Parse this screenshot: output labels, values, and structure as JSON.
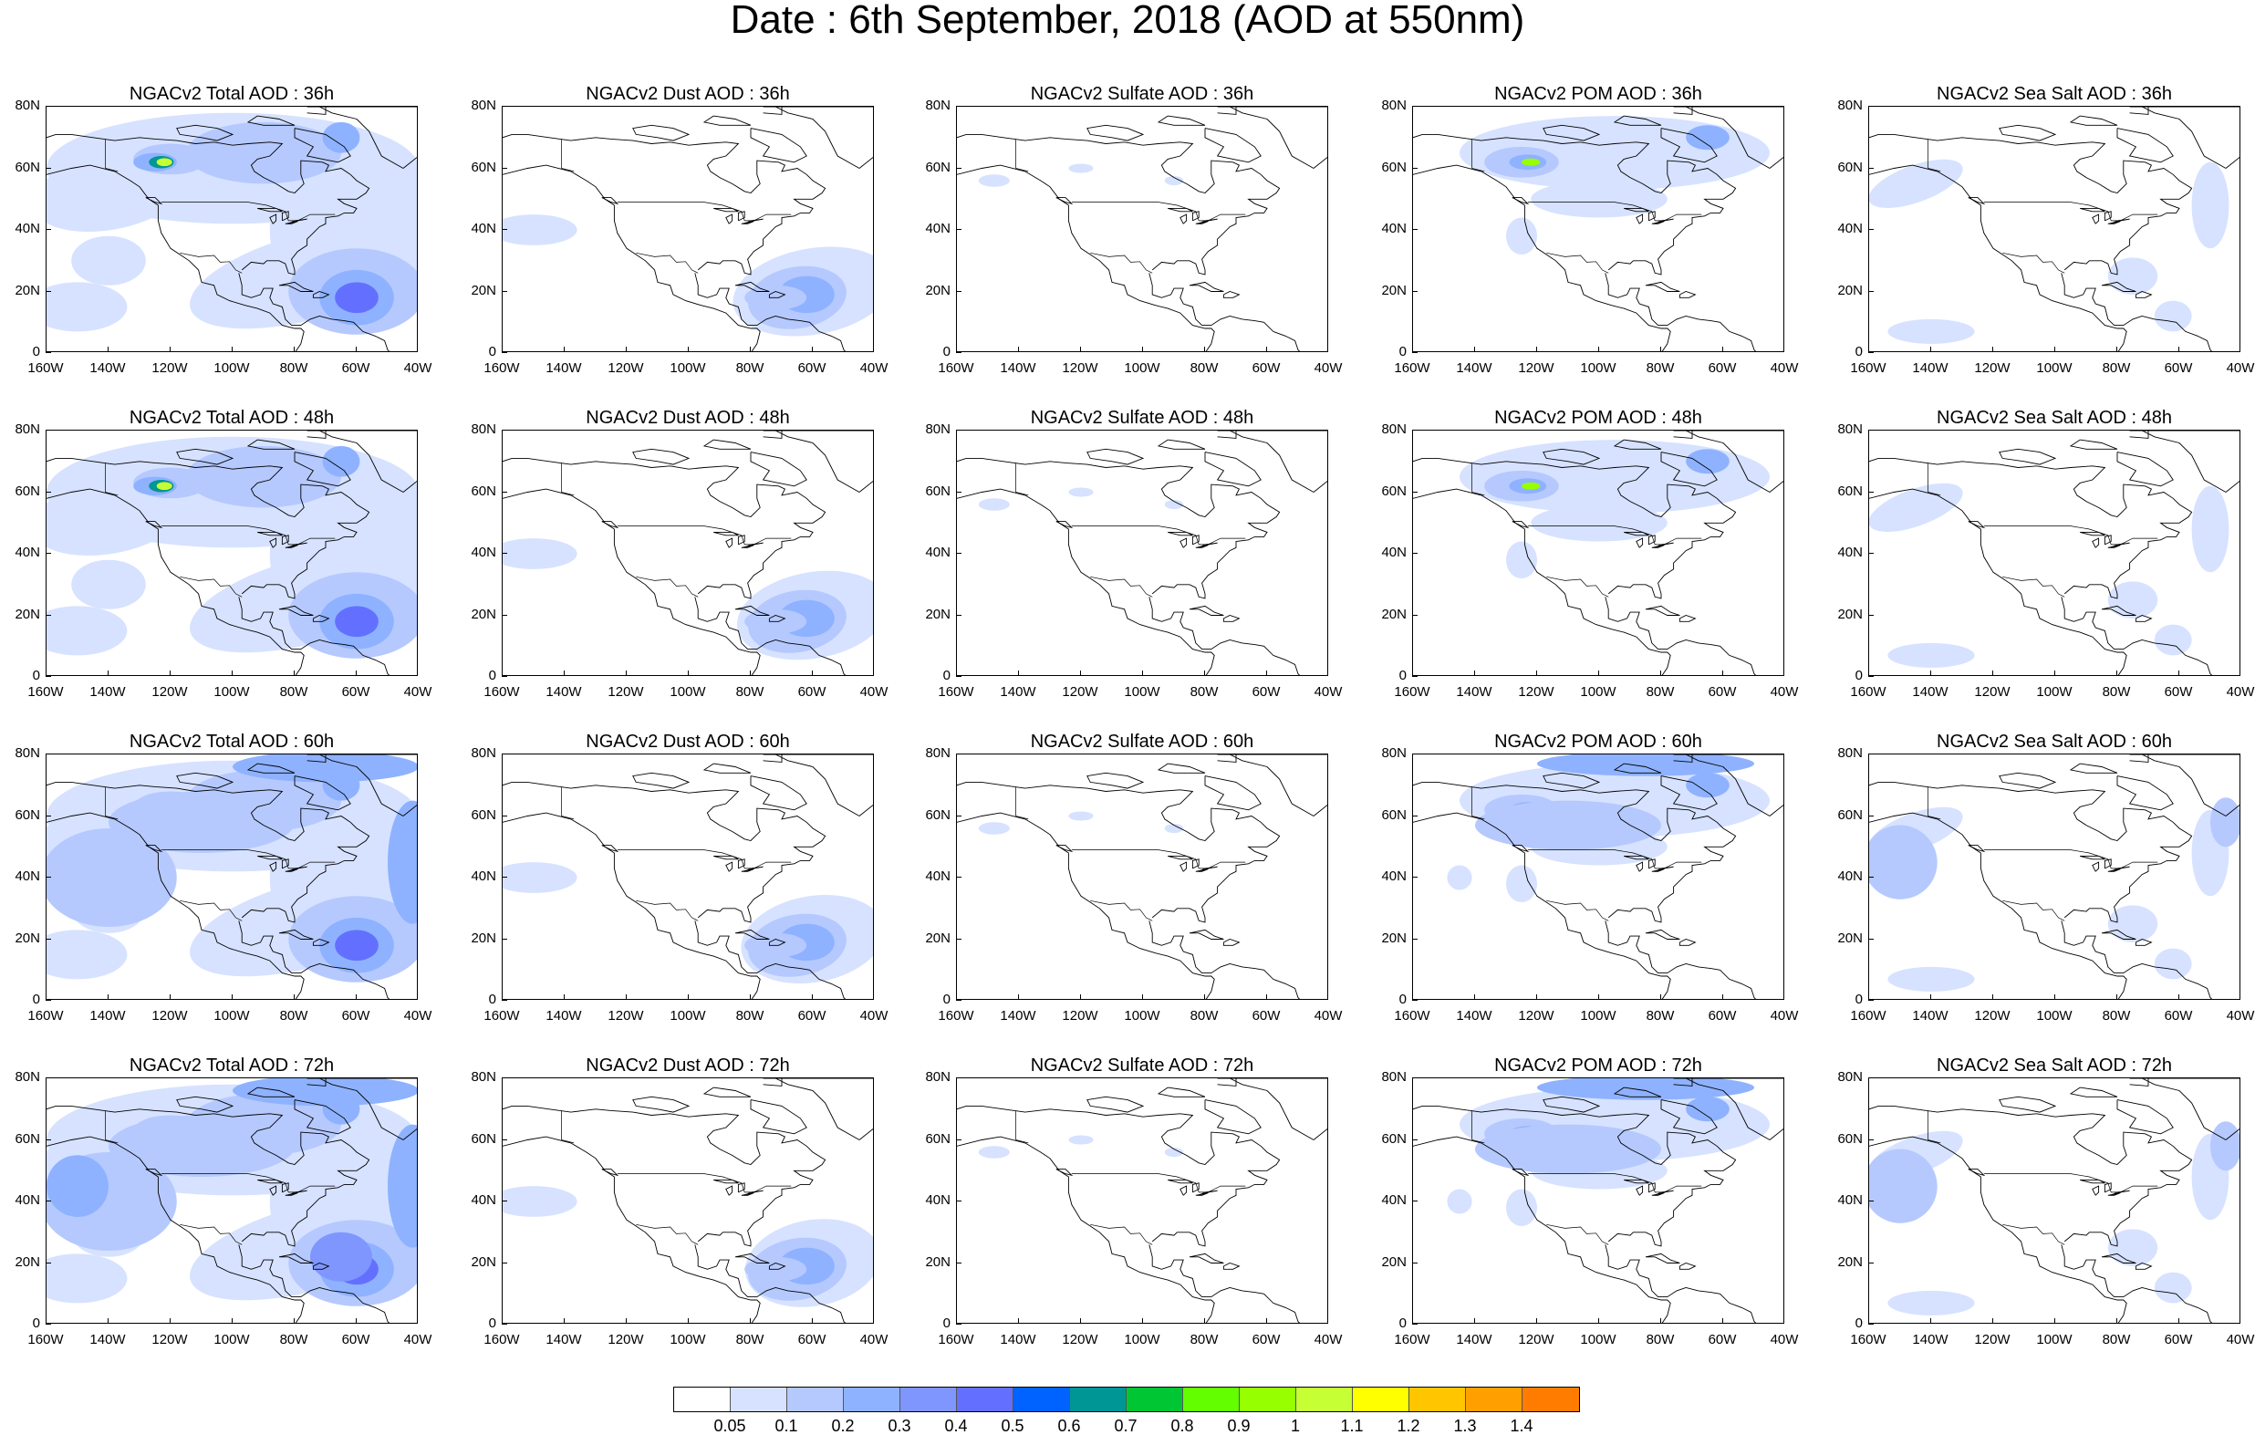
{
  "title": "Date : 6th September, 2018 (AOD at 550nm)",
  "x_ticks": [
    "160W",
    "140W",
    "120W",
    "100W",
    "80W",
    "60W",
    "40W"
  ],
  "y_ticks": [
    "80N",
    "60N",
    "40N",
    "20N",
    "0"
  ],
  "panels": [
    {
      "title": "NGACv2 Total AOD : 36h",
      "species": "total",
      "hour": 36
    },
    {
      "title": "NGACv2 Dust AOD : 36h",
      "species": "dust",
      "hour": 36
    },
    {
      "title": "NGACv2 Sulfate AOD : 36h",
      "species": "sulfate",
      "hour": 36
    },
    {
      "title": "NGACv2 POM AOD : 36h",
      "species": "pom",
      "hour": 36
    },
    {
      "title": "NGACv2 Sea Salt AOD : 36h",
      "species": "seasalt",
      "hour": 36
    },
    {
      "title": "NGACv2 Total AOD : 48h",
      "species": "total",
      "hour": 48
    },
    {
      "title": "NGACv2 Dust AOD : 48h",
      "species": "dust",
      "hour": 48
    },
    {
      "title": "NGACv2 Sulfate AOD : 48h",
      "species": "sulfate",
      "hour": 48
    },
    {
      "title": "NGACv2 POM AOD : 48h",
      "species": "pom",
      "hour": 48
    },
    {
      "title": "NGACv2 Sea Salt AOD : 48h",
      "species": "seasalt",
      "hour": 48
    },
    {
      "title": "NGACv2 Total AOD : 60h",
      "species": "total",
      "hour": 60
    },
    {
      "title": "NGACv2 Dust AOD : 60h",
      "species": "dust",
      "hour": 60
    },
    {
      "title": "NGACv2 Sulfate AOD : 60h",
      "species": "sulfate",
      "hour": 60
    },
    {
      "title": "NGACv2 POM AOD : 60h",
      "species": "pom",
      "hour": 60
    },
    {
      "title": "NGACv2 Sea Salt AOD : 60h",
      "species": "seasalt",
      "hour": 60
    },
    {
      "title": "NGACv2 Total AOD : 72h",
      "species": "total",
      "hour": 72
    },
    {
      "title": "NGACv2 Dust AOD : 72h",
      "species": "dust",
      "hour": 72
    },
    {
      "title": "NGACv2 Sulfate AOD : 72h",
      "species": "sulfate",
      "hour": 72
    },
    {
      "title": "NGACv2 POM AOD : 72h",
      "species": "pom",
      "hour": 72
    },
    {
      "title": "NGACv2 Sea Salt  AOD : 72h",
      "species": "seasalt",
      "hour": 72
    }
  ],
  "colorbar": {
    "colors": [
      "#ffffff",
      "#d6e2ff",
      "#b5c9ff",
      "#8eb2ff",
      "#7f96ff",
      "#6370ff",
      "#0063ff",
      "#009696",
      "#00c633",
      "#63ff00",
      "#96ff00",
      "#c6ff33",
      "#ffff00",
      "#ffc600",
      "#ffa000",
      "#ff7c00",
      "#ff1900"
    ],
    "labels": [
      "0.05",
      "0.1",
      "0.2",
      "0.3",
      "0.4",
      "0.5",
      "0.6",
      "0.7",
      "0.8",
      "0.9",
      "1",
      "1.1",
      "1.2",
      "1.3",
      "1.4"
    ]
  }
}
